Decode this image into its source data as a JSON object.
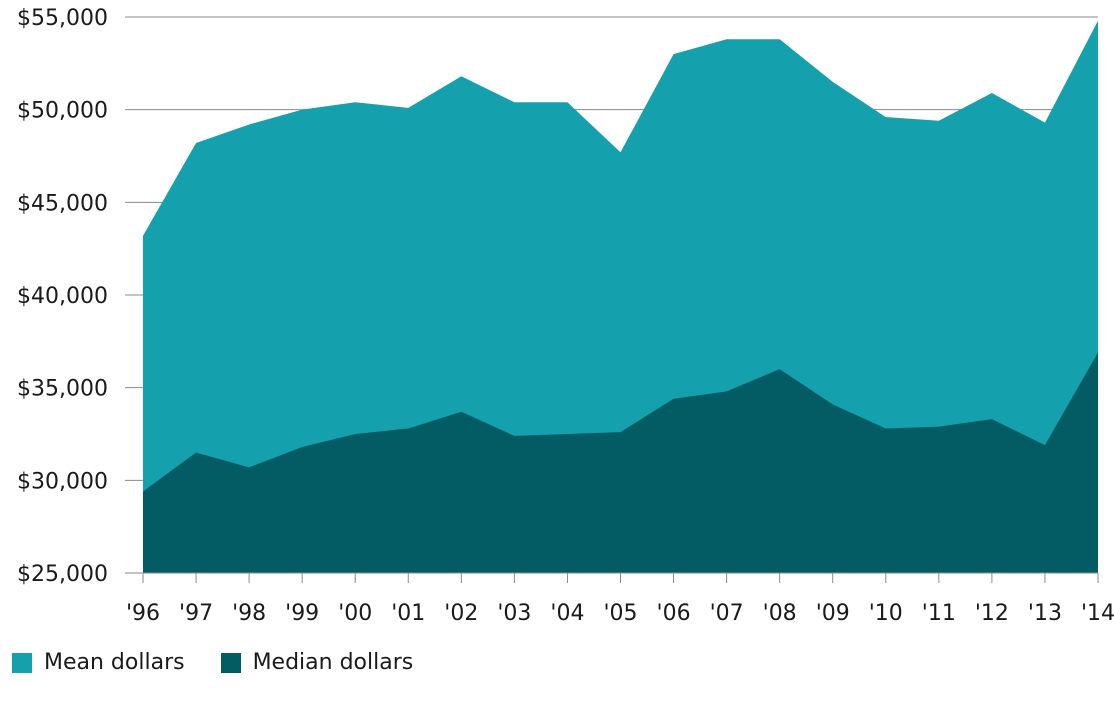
{
  "chart_data": {
    "type": "area",
    "x": [
      "'96",
      "'97",
      "'98",
      "'99",
      "'00",
      "'01",
      "'02",
      "'03",
      "'04",
      "'05",
      "'06",
      "'07",
      "'08",
      "'09",
      "'10",
      "'11",
      "'12",
      "'13",
      "'14"
    ],
    "series": [
      {
        "name": "Mean dollars",
        "color": "#14a1ad",
        "values": [
          43200,
          48200,
          49200,
          50000,
          50400,
          50100,
          51800,
          50400,
          50400,
          47700,
          53000,
          53800,
          53800,
          51500,
          49600,
          49400,
          50900,
          49300,
          54800
        ]
      },
      {
        "name": "Median dollars",
        "color": "#035c63",
        "values": [
          29400,
          31500,
          30700,
          31800,
          32500,
          32800,
          33700,
          32400,
          32500,
          32600,
          34400,
          34800,
          36000,
          34100,
          32800,
          32900,
          33300,
          31900,
          36900
        ]
      }
    ],
    "ylim": [
      25000,
      55000
    ],
    "y_ticks": [
      "$25,000",
      "$30,000",
      "$35,000",
      "$40,000",
      "$45,000",
      "$50,000",
      "$55,000"
    ],
    "y_tick_values": [
      25000,
      30000,
      35000,
      40000,
      45000,
      50000,
      55000
    ],
    "grid": true,
    "legend_placement": "bottom-left"
  }
}
